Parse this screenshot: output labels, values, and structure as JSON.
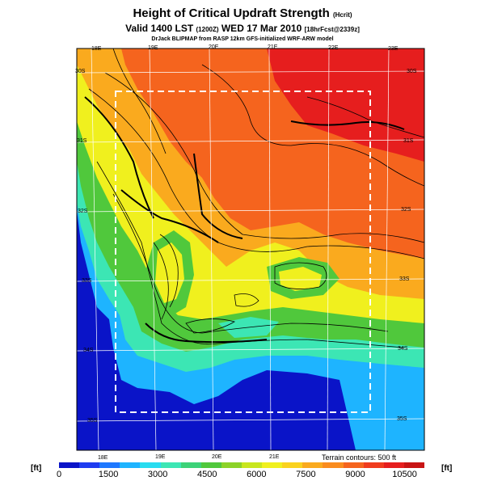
{
  "title": "Height of Critical Updraft Strength",
  "title_units": "(Hcrit)",
  "subtitle": "Valid 1400 LST",
  "subtitle_small": "(1200Z)",
  "subtitle_date": "WED 17 Mar 2010",
  "subtitle_fcst": "[18hrFcst@2339z]",
  "credit": "DrJack BLIPMAP from RASP 12km GFS-initialized WRF-ARW model",
  "lon_labels_top": [
    "18E",
    "19E",
    "20E",
    "21E",
    "22E",
    "23E"
  ],
  "lon_labels_bottom": [
    "18E",
    "19E",
    "20E",
    "21E"
  ],
  "lat_labels_left": [
    "30S",
    "31S",
    "32S",
    "33S",
    "34S",
    "35S"
  ],
  "lat_labels_right": [
    "30S",
    "31S",
    "32S",
    "33S",
    "34S",
    "35S"
  ],
  "terrain_note": "Terrain contours: 500 ft",
  "colorbar": {
    "unit": "[ft]",
    "tick_labels": [
      "0",
      "1500",
      "3000",
      "4500",
      "6000",
      "7500",
      "9000",
      "10500"
    ],
    "colors": [
      "#0a14c8",
      "#1e3cf0",
      "#1e78ff",
      "#1eb4ff",
      "#28dcf0",
      "#3ce6b4",
      "#3cd278",
      "#50c83c",
      "#8cd228",
      "#c8e61e",
      "#f0f01e",
      "#fad21e",
      "#faaa1e",
      "#fa8c1e",
      "#f5641e",
      "#f03c1e",
      "#e61e1e",
      "#c81414"
    ]
  }
}
